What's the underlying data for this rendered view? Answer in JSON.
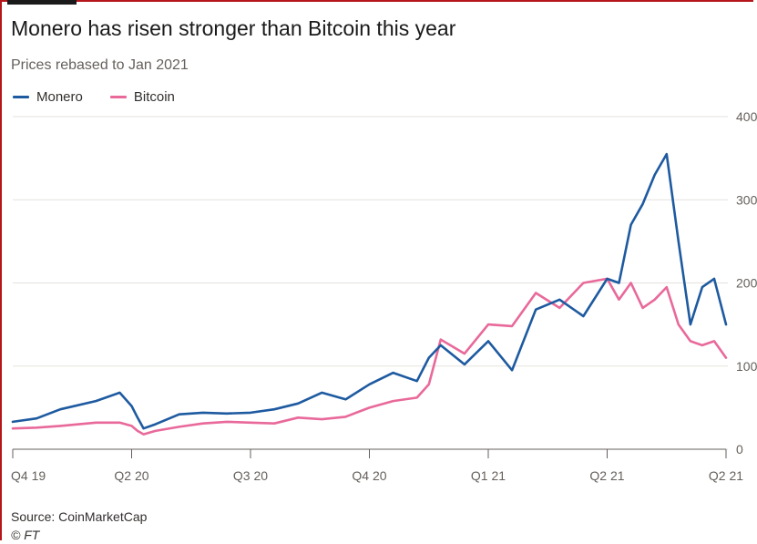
{
  "title": "Monero has risen stronger than Bitcoin this year",
  "subtitle": "Prices rebased to Jan 2021",
  "source": "Source: CoinMarketCap",
  "copyright": "© FT",
  "colors": {
    "monero": "#1e5aa0",
    "bitcoin": "#e8699a",
    "grid": "#e6e2de",
    "axis": "#66605c"
  },
  "chart_data": {
    "type": "line",
    "title": "Monero has risen stronger than Bitcoin this year",
    "subtitle": "Prices rebased to Jan 2021",
    "xlabel": "",
    "ylabel": "",
    "x_ticks": [
      "Q4 19",
      "Q2 20",
      "Q3 20",
      "Q4 20",
      "Q1 21",
      "Q2 21",
      "Q2 21"
    ],
    "y_ticks": [
      "0",
      "100",
      "200",
      "300",
      "400"
    ],
    "ylim": [
      0,
      400
    ],
    "grid": true,
    "legend_position": "top-left",
    "x": [
      0,
      0.2,
      0.4,
      0.7,
      0.9,
      1.0,
      1.05,
      1.1,
      1.2,
      1.4,
      1.6,
      1.8,
      2.0,
      2.2,
      2.4,
      2.6,
      2.8,
      3.0,
      3.2,
      3.4,
      3.5,
      3.6,
      3.8,
      4.0,
      4.2,
      4.4,
      4.6,
      4.8,
      5.0,
      5.1,
      5.2,
      5.3,
      5.4,
      5.5,
      5.6,
      5.7,
      5.8,
      5.9,
      6.0
    ],
    "series": [
      {
        "name": "Monero",
        "values": [
          33,
          37,
          48,
          58,
          68,
          52,
          38,
          25,
          30,
          42,
          44,
          43,
          44,
          48,
          55,
          68,
          60,
          78,
          92,
          82,
          110,
          125,
          102,
          130,
          95,
          168,
          180,
          160,
          205,
          200,
          270,
          295,
          330,
          355,
          250,
          150,
          195,
          205,
          150
        ],
        "color": "#1e5aa0"
      },
      {
        "name": "Bitcoin",
        "values": [
          25,
          26,
          28,
          32,
          32,
          28,
          22,
          18,
          22,
          27,
          31,
          33,
          32,
          31,
          38,
          36,
          39,
          50,
          58,
          62,
          78,
          132,
          115,
          150,
          148,
          188,
          170,
          200,
          205,
          180,
          200,
          170,
          180,
          195,
          150,
          130,
          125,
          130,
          110
        ]
      }
    ]
  }
}
